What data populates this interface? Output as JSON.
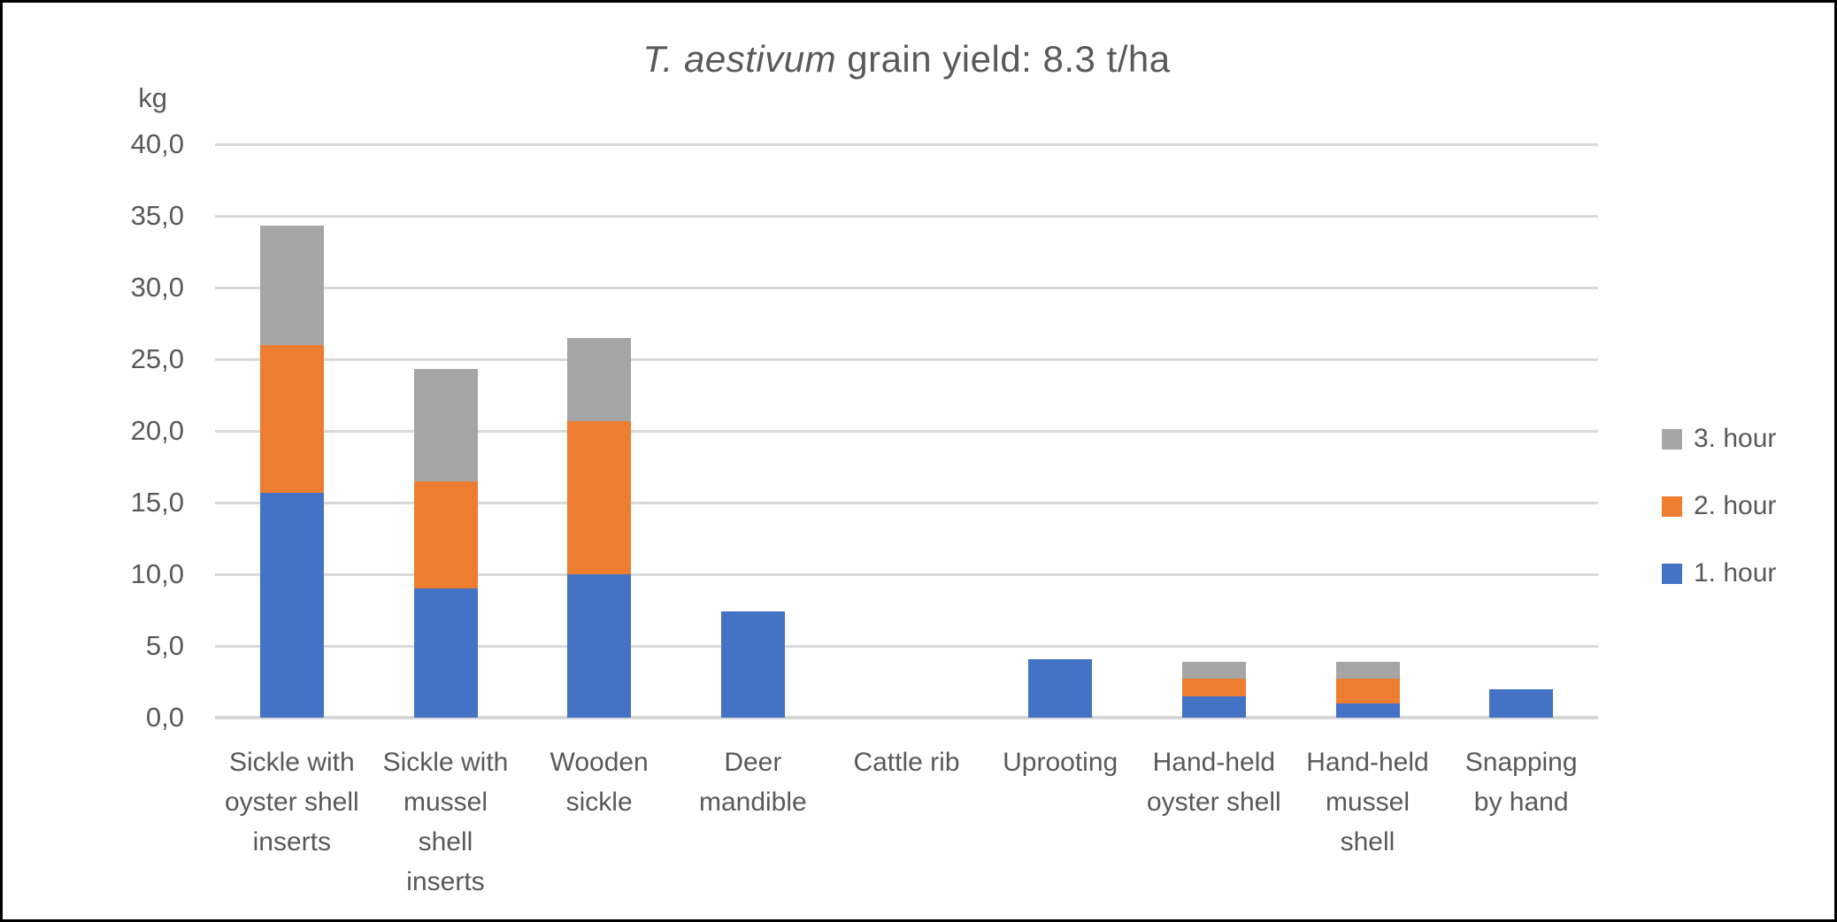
{
  "chart_data": {
    "type": "bar",
    "stacked": true,
    "title_italic": "T. aestivum",
    "title_rest": " grain yield: 8.3 t/ha",
    "ylabel": "kg",
    "ylim": [
      0,
      40
    ],
    "ytick_step": 5,
    "ytick_labels": [
      "0,0",
      "5,0",
      "10,0",
      "15,0",
      "20,0",
      "25,0",
      "30,0",
      "35,0",
      "40,0"
    ],
    "grid": true,
    "legend_position": "right",
    "categories": [
      "Sickle with oyster shell inserts",
      "Sickle with mussel shell inserts",
      "Wooden sickle",
      "Deer mandible",
      "Cattle rib",
      "Uprooting",
      "Hand-held oyster shell",
      "Hand-held mussel shell",
      "Snapping by hand"
    ],
    "category_label_lines": [
      [
        "Sickle with",
        "oyster shell",
        "inserts"
      ],
      [
        "Sickle with",
        "mussel",
        "shell",
        "inserts"
      ],
      [
        "Wooden",
        "sickle"
      ],
      [
        "Deer",
        "mandible"
      ],
      [
        "Cattle rib"
      ],
      [
        "Uprooting"
      ],
      [
        "Hand-held",
        "oyster shell"
      ],
      [
        "Hand-held",
        "mussel",
        "shell"
      ],
      [
        "Snapping",
        "by hand"
      ]
    ],
    "series": [
      {
        "name": "1. hour",
        "color": "#4472C4",
        "values": [
          15.7,
          9.0,
          10.0,
          7.4,
          0,
          4.1,
          1.5,
          1.0,
          2.0
        ]
      },
      {
        "name": "2. hour",
        "color": "#ED7D31",
        "values": [
          10.3,
          7.5,
          10.7,
          0,
          0,
          0,
          1.2,
          1.7,
          0
        ]
      },
      {
        "name": "3. hour",
        "color": "#A5A5A5",
        "values": [
          8.3,
          7.8,
          5.8,
          0,
          0,
          0,
          1.2,
          1.2,
          0
        ]
      }
    ],
    "totals": [
      34.3,
      24.3,
      26.5,
      7.4,
      0,
      4.1,
      3.9,
      3.9,
      2.0
    ],
    "legend_order": [
      "3. hour",
      "2. hour",
      "1. hour"
    ],
    "colors": {
      "series_blue": "#4472C4",
      "series_orange": "#ED7D31",
      "series_gray": "#A5A5A5",
      "text": "#595959",
      "gridline": "#D9D9D9",
      "border": "#000000",
      "background": "#FFFFFF"
    }
  }
}
